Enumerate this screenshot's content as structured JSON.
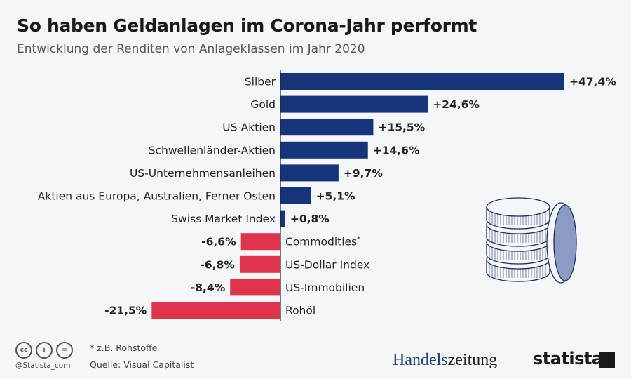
{
  "header": {
    "title": "So haben Geldanlagen im Corona-Jahr performt",
    "subtitle": "Entwicklung der Renditen von Anlageklassen im Jahr 2020"
  },
  "chart_data": {
    "type": "bar",
    "orientation": "horizontal",
    "categories": [
      "Silber",
      "Gold",
      "US-Aktien",
      "Schwellenländer-Aktien",
      "US-Unternehmensanleihen",
      "Aktien aus Europa, Australien, Ferner Osten",
      "Swiss Market Index",
      "Commodities",
      "US-Dollar Index",
      "US-Immobilien",
      "Rohöl"
    ],
    "category_superscripts": [
      "",
      "",
      "",
      "",
      "",
      "",
      "",
      "*",
      "",
      "",
      ""
    ],
    "values": [
      47.4,
      24.6,
      15.5,
      14.6,
      9.7,
      5.1,
      0.8,
      -6.6,
      -6.8,
      -8.4,
      -21.5
    ],
    "value_labels": [
      "+47,4%",
      "+24,6%",
      "+15,5%",
      "+14,6%",
      "+9,7%",
      "+5,1%",
      "+0,8%",
      "-6,6%",
      "-6,8%",
      "-8,4%",
      "-21,5%"
    ],
    "xlim": [
      -21.5,
      47.4
    ],
    "grid": false,
    "colors": {
      "positive": "#15347a",
      "negative": "#e0344d",
      "axis": "#222222"
    }
  },
  "footer": {
    "note": "* z.B. Rohstoffe",
    "source": "Quelle: Visual Capitalist",
    "handle": "@Statista_com",
    "cc_icons": [
      "cc",
      "i",
      "="
    ],
    "brand1_a": "Handels",
    "brand1_b": "zeitung",
    "brand2": "statista"
  },
  "icons": {
    "illustration": "coin-stack-icon"
  }
}
